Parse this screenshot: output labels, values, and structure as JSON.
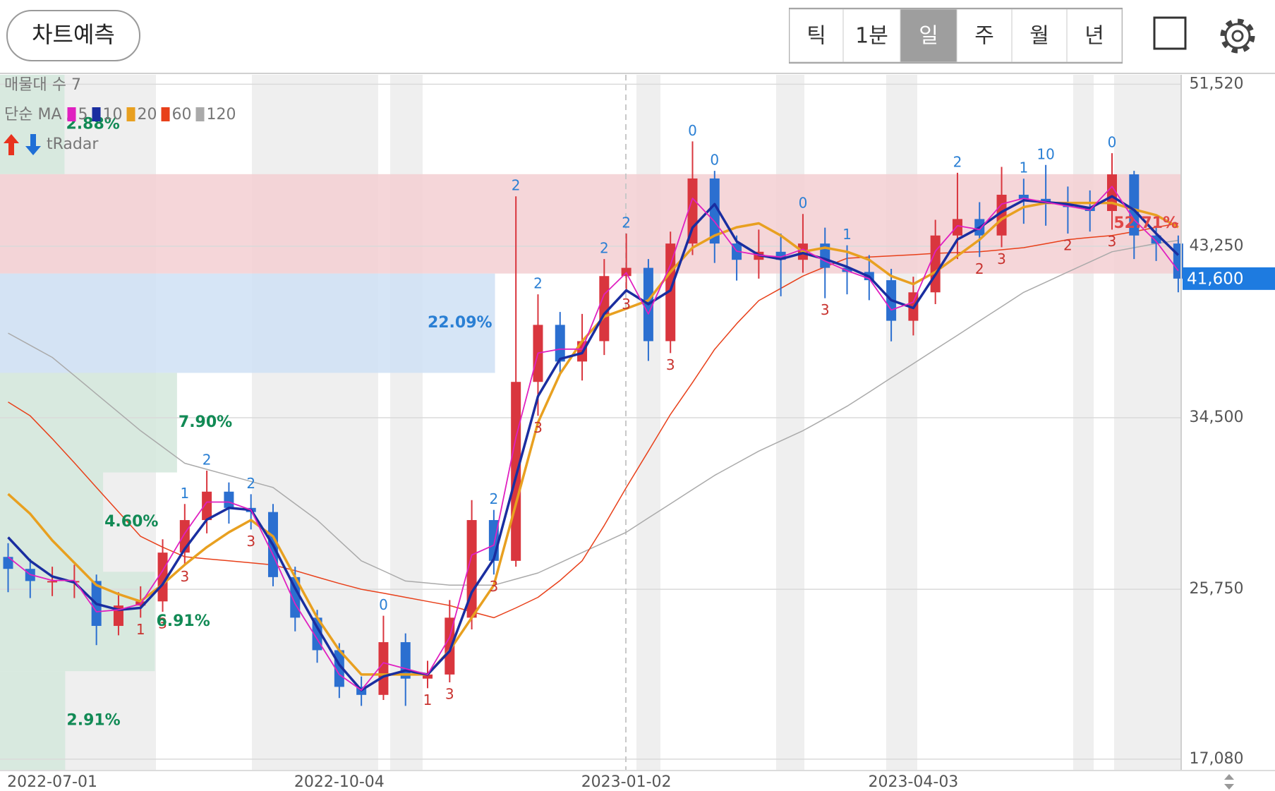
{
  "toolbar": {
    "button": "차트예측",
    "periods": [
      "틱",
      "1분",
      "일",
      "주",
      "월",
      "년"
    ],
    "selected": 2
  },
  "chart_data": {
    "type": "candlestick",
    "profile_label": "매물대 수 7",
    "ma_label": "단순 MA",
    "signal_label": "tRadar",
    "categories": [
      null,
      null,
      "2022-07-01",
      null,
      null,
      null,
      null,
      null,
      null,
      null,
      null,
      null,
      null,
      null,
      null,
      "2022-10-04",
      null,
      null,
      null,
      null,
      null,
      null,
      null,
      null,
      null,
      null,
      null,
      null,
      "2023-01-02",
      null,
      null,
      null,
      null,
      null,
      null,
      null,
      null,
      null,
      null,
      null,
      null,
      "2023-04-03",
      null,
      null,
      null,
      null,
      null,
      null,
      null,
      null,
      null,
      null,
      null,
      null
    ],
    "open": [
      27400,
      26790,
      26170,
      26170,
      26170,
      23880,
      24920,
      25130,
      27620,
      29280,
      30730,
      29900,
      29690,
      26370,
      24300,
      22640,
      20770,
      20360,
      23050,
      21190,
      21400,
      24300,
      29280,
      27200,
      36330,
      39240,
      37370,
      38410,
      41730,
      42150,
      38410,
      43390,
      46710,
      43390,
      42560,
      42970,
      42560,
      43390,
      42150,
      41940,
      41520,
      39450,
      40900,
      43800,
      44640,
      43800,
      45880,
      45670,
      45460,
      45250,
      45050,
      46920,
      43800,
      43390
    ],
    "high": [
      28100,
      27300,
      26900,
      27000,
      26500,
      25600,
      25900,
      28300,
      30100,
      31800,
      31200,
      30600,
      30100,
      26900,
      24700,
      23000,
      21300,
      24400,
      23500,
      22100,
      25200,
      30300,
      29800,
      45800,
      40800,
      39900,
      39800,
      42600,
      43900,
      42600,
      44000,
      48600,
      47100,
      43800,
      44100,
      43900,
      44900,
      44200,
      43300,
      42800,
      42100,
      41700,
      44600,
      47000,
      45500,
      47300,
      46700,
      47400,
      46300,
      46100,
      48000,
      47100,
      44300,
      43800
    ],
    "low": [
      25600,
      25300,
      25400,
      25300,
      22900,
      23400,
      24300,
      24600,
      27000,
      28600,
      29100,
      28800,
      25900,
      23600,
      22000,
      20200,
      19800,
      20100,
      19800,
      20700,
      21000,
      23700,
      26500,
      26900,
      34600,
      36800,
      36400,
      37700,
      40900,
      37400,
      37800,
      42800,
      42400,
      41500,
      41600,
      40700,
      41900,
      40600,
      40800,
      40500,
      38400,
      38700,
      40300,
      42600,
      42700,
      43200,
      44400,
      44300,
      43900,
      44000,
      44100,
      42600,
      42500,
      40900
    ],
    "close": [
      26790,
      26170,
      26170,
      26170,
      23880,
      24920,
      25130,
      27620,
      29280,
      30730,
      29900,
      29690,
      26370,
      24300,
      22640,
      20770,
      20360,
      23050,
      21190,
      21400,
      24300,
      29280,
      27200,
      36330,
      39240,
      37370,
      38410,
      41730,
      42150,
      38410,
      43390,
      46710,
      43390,
      42560,
      42970,
      42560,
      43390,
      42150,
      41940,
      41520,
      39450,
      40900,
      43800,
      44640,
      43800,
      45880,
      45670,
      45460,
      45250,
      45050,
      46920,
      43800,
      43390,
      41600
    ],
    "up_color": "#d9363e",
    "down_color": "#2b6fd0",
    "series": [
      {
        "name": "5",
        "color": "#e020c0",
        "values": [
          27400,
          26500,
          26200,
          26200,
          24600,
          24700,
          25000,
          26700,
          28600,
          30200,
          30200,
          29800,
          27500,
          25000,
          23200,
          21400,
          20600,
          22000,
          21700,
          21400,
          23300,
          27500,
          28000,
          33500,
          37800,
          38000,
          38000,
          40800,
          41900,
          39800,
          42300,
          45700,
          44500,
          43000,
          42800,
          42700,
          43100,
          42500,
          42000,
          41600,
          40000,
          40400,
          43000,
          44300,
          44100,
          45400,
          45700,
          45500,
          45300,
          45100,
          46300,
          44600,
          43500,
          42000
        ]
      },
      {
        "name": "10",
        "color": "#1a2ea0",
        "values": [
          28400,
          27200,
          26400,
          26100,
          25000,
          24700,
          24800,
          26000,
          27800,
          29300,
          29900,
          29800,
          28000,
          25800,
          23800,
          21900,
          20600,
          21300,
          21600,
          21400,
          22600,
          25600,
          27300,
          31500,
          35600,
          37500,
          37800,
          39800,
          41000,
          40300,
          41000,
          44200,
          45400,
          43500,
          42800,
          42600,
          42900,
          42600,
          42200,
          41700,
          40500,
          40100,
          41800,
          43600,
          44200,
          45000,
          45600,
          45500,
          45400,
          45200,
          45800,
          45100,
          43900,
          42800
        ]
      },
      {
        "name": "20",
        "color": "#e8a020",
        "values": [
          30610,
          29600,
          28240,
          27100,
          25960,
          25500,
          25130,
          26000,
          27000,
          27900,
          28660,
          29280,
          28450,
          26370,
          24300,
          22640,
          21400,
          21400,
          21400,
          21400,
          22640,
          24300,
          25960,
          30110,
          34260,
          36750,
          38410,
          39660,
          40070,
          40490,
          41940,
          43180,
          43800,
          44220,
          44420,
          43800,
          42970,
          43180,
          42970,
          42560,
          41730,
          41320,
          41940,
          42760,
          43590,
          44630,
          45250,
          45460,
          45460,
          45460,
          45460,
          45130,
          44840,
          44220
        ]
      },
      {
        "name": "60",
        "color": "#e8401a",
        "values": [
          35300,
          34600,
          33430,
          32200,
          30940,
          29700,
          28450,
          27900,
          27410,
          27300,
          27200,
          27100,
          26990,
          26700,
          26370,
          26050,
          25750,
          25550,
          25340,
          25130,
          24920,
          24600,
          24300,
          24800,
          25340,
          26200,
          27200,
          29000,
          30940,
          32800,
          34670,
          36300,
          37990,
          39300,
          40480,
          41100,
          41730,
          42200,
          42640,
          42700,
          42760,
          42820,
          42890,
          42930,
          42970,
          43070,
          43180,
          43380,
          43590,
          43700,
          43800,
          44000,
          44220,
          44420
        ]
      },
      {
        "name": "120",
        "color": "#aaaaaa",
        "values": [
          38820,
          38200,
          37580,
          36650,
          35710,
          34780,
          33840,
          33010,
          32180,
          31870,
          31560,
          31250,
          30940,
          30110,
          29280,
          28240,
          27200,
          26690,
          26170,
          26070,
          25960,
          25960,
          25960,
          26270,
          26580,
          27100,
          27620,
          28140,
          28660,
          29390,
          30110,
          30840,
          31560,
          32180,
          32800,
          33320,
          33840,
          34460,
          35090,
          35810,
          36540,
          37260,
          37990,
          38710,
          39440,
          40170,
          40900,
          41420,
          41940,
          42450,
          42970,
          43180,
          43390,
          43550
        ]
      }
    ],
    "ylim": [
      16500,
      52000
    ],
    "yticks": [
      {
        "value": 17080,
        "label": "17,080"
      },
      {
        "value": 25750,
        "label": "25,750"
      },
      {
        "value": 34500,
        "label": "34,500"
      },
      {
        "value": 43250,
        "label": "43,250"
      },
      {
        "value": 51520,
        "label": "51,520"
      }
    ],
    "grid": true,
    "last_price": {
      "value": 41600,
      "label": "41,600"
    },
    "volume_profile": [
      {
        "high": 52000,
        "low": 46930,
        "value": 2.88,
        "label": "2.88%",
        "color": "#d3e8dc",
        "text_color": "#118a55"
      },
      {
        "high": 46930,
        "low": 41860,
        "value": 52.71,
        "label": "52.71%",
        "color": "#f3cfd2",
        "text_color": "#e04848"
      },
      {
        "high": 41860,
        "low": 36790,
        "value": 22.09,
        "label": "22.09%",
        "color": "#cfe1f5",
        "text_color": "#2a7fd4"
      },
      {
        "high": 36790,
        "low": 31710,
        "value": 7.9,
        "label": "7.90%",
        "color": "#d3e8dc",
        "text_color": "#118a55"
      },
      {
        "high": 31710,
        "low": 26640,
        "value": 4.6,
        "label": "4.60%",
        "color": "#d3e8dc",
        "text_color": "#118a55"
      },
      {
        "high": 26640,
        "low": 21570,
        "value": 6.91,
        "label": "6.91%",
        "color": "#d3e8dc",
        "text_color": "#118a55"
      },
      {
        "high": 21570,
        "low": 16500,
        "value": 2.91,
        "label": "2.91%",
        "color": "#d3e8dc",
        "text_color": "#118a55"
      }
    ],
    "signals": [
      {
        "index": 8,
        "text": "1",
        "side": "up"
      },
      {
        "index": 9,
        "text": "2",
        "side": "up"
      },
      {
        "index": 11,
        "text": "2",
        "side": "up"
      },
      {
        "index": 17,
        "text": "0",
        "side": "up"
      },
      {
        "index": 22,
        "text": "2",
        "side": "up"
      },
      {
        "index": 23,
        "text": "2",
        "side": "up"
      },
      {
        "index": 24,
        "text": "2",
        "side": "up"
      },
      {
        "index": 27,
        "text": "2",
        "side": "up"
      },
      {
        "index": 28,
        "text": "2",
        "side": "up"
      },
      {
        "index": 31,
        "text": "0",
        "side": "up"
      },
      {
        "index": 32,
        "text": "0",
        "side": "up"
      },
      {
        "index": 36,
        "text": "0",
        "side": "up"
      },
      {
        "index": 38,
        "text": "1",
        "side": "up"
      },
      {
        "index": 43,
        "text": "2",
        "side": "up"
      },
      {
        "index": 46,
        "text": "1",
        "side": "up"
      },
      {
        "index": 47,
        "text": "10",
        "side": "up"
      },
      {
        "index": 50,
        "text": "0",
        "side": "up"
      },
      {
        "index": 6,
        "text": "1",
        "side": "down"
      },
      {
        "index": 7,
        "text": "3",
        "side": "down"
      },
      {
        "index": 8,
        "text": "3",
        "side": "down"
      },
      {
        "index": 11,
        "text": "3",
        "side": "down"
      },
      {
        "index": 19,
        "text": "1",
        "side": "down"
      },
      {
        "index": 20,
        "text": "3",
        "side": "down"
      },
      {
        "index": 22,
        "text": "3",
        "side": "down"
      },
      {
        "index": 24,
        "text": "3",
        "side": "down"
      },
      {
        "index": 28,
        "text": "3",
        "side": "down"
      },
      {
        "index": 30,
        "text": "3",
        "side": "down"
      },
      {
        "index": 37,
        "text": "3",
        "side": "down"
      },
      {
        "index": 44,
        "text": "2",
        "side": "down"
      },
      {
        "index": 45,
        "text": "3",
        "side": "down"
      },
      {
        "index": 48,
        "text": "2",
        "side": "down"
      },
      {
        "index": 50,
        "text": "3",
        "side": "down"
      }
    ]
  }
}
